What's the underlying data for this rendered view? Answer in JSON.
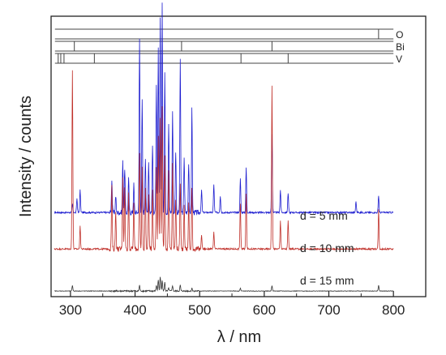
{
  "chart_data": {
    "type": "line",
    "xlabel": "λ / nm",
    "ylabel": "Intensity / counts",
    "xlim": [
      270,
      850
    ],
    "xticks": [
      300,
      400,
      500,
      600,
      700,
      800
    ],
    "grid": false,
    "series": [
      {
        "name": "d = 5 mm",
        "color": "#1f1fd0",
        "offset": 0.3,
        "peaks": [
          [
            303,
            0.03
          ],
          [
            310,
            0.05
          ],
          [
            315,
            0.08
          ],
          [
            364,
            0.12
          ],
          [
            370,
            0.06
          ],
          [
            381,
            0.18
          ],
          [
            384,
            0.16
          ],
          [
            390,
            0.12
          ],
          [
            398,
            0.1
          ],
          [
            407,
            0.62
          ],
          [
            411,
            0.4
          ],
          [
            416,
            0.2
          ],
          [
            421,
            0.18
          ],
          [
            427,
            0.24
          ],
          [
            433,
            0.45
          ],
          [
            436,
            0.58
          ],
          [
            439,
            0.7
          ],
          [
            442,
            0.74
          ],
          [
            446,
            0.5
          ],
          [
            452,
            0.32
          ],
          [
            458,
            0.36
          ],
          [
            463,
            0.22
          ],
          [
            470,
            0.55
          ],
          [
            476,
            0.2
          ],
          [
            483,
            0.18
          ],
          [
            488,
            0.38
          ],
          [
            503,
            0.08
          ],
          [
            522,
            0.1
          ],
          [
            532,
            0.06
          ],
          [
            563,
            0.12
          ],
          [
            572,
            0.16
          ],
          [
            612,
            0.28
          ],
          [
            625,
            0.08
          ],
          [
            637,
            0.07
          ],
          [
            742,
            0.04
          ],
          [
            777,
            0.06
          ]
        ]
      },
      {
        "name": "d = 10 mm",
        "color": "#c0302a",
        "offset": 0.17,
        "peaks": [
          [
            303,
            0.64
          ],
          [
            315,
            0.08
          ],
          [
            364,
            0.22
          ],
          [
            370,
            0.14
          ],
          [
            381,
            0.26
          ],
          [
            384,
            0.22
          ],
          [
            390,
            0.2
          ],
          [
            398,
            0.16
          ],
          [
            407,
            0.34
          ],
          [
            411,
            0.3
          ],
          [
            416,
            0.22
          ],
          [
            421,
            0.2
          ],
          [
            427,
            0.22
          ],
          [
            433,
            0.3
          ],
          [
            436,
            0.4
          ],
          [
            439,
            0.46
          ],
          [
            442,
            0.5
          ],
          [
            446,
            0.34
          ],
          [
            452,
            0.28
          ],
          [
            458,
            0.3
          ],
          [
            463,
            0.18
          ],
          [
            470,
            0.24
          ],
          [
            476,
            0.16
          ],
          [
            483,
            0.16
          ],
          [
            488,
            0.22
          ],
          [
            503,
            0.05
          ],
          [
            522,
            0.06
          ],
          [
            563,
            0.16
          ],
          [
            572,
            0.2
          ],
          [
            612,
            0.58
          ],
          [
            625,
            0.1
          ],
          [
            637,
            0.1
          ],
          [
            777,
            0.14
          ]
        ]
      },
      {
        "name": "d = 15 mm",
        "color": "#333333",
        "offset": 0.02,
        "peaks": [
          [
            303,
            0.02
          ],
          [
            407,
            0.02
          ],
          [
            433,
            0.02
          ],
          [
            436,
            0.04
          ],
          [
            439,
            0.05
          ],
          [
            442,
            0.04
          ],
          [
            446,
            0.03
          ],
          [
            452,
            0.01
          ],
          [
            458,
            0.02
          ],
          [
            470,
            0.02
          ],
          [
            488,
            0.01
          ],
          [
            563,
            0.01
          ],
          [
            612,
            0.02
          ],
          [
            777,
            0.02
          ]
        ]
      }
    ],
    "annotations": [
      "d = 5 mm",
      "d = 10 mm",
      "d = 15 mm"
    ],
    "reference_lines": [
      {
        "element": "O",
        "color": "#444444",
        "lines": [
          777
        ]
      },
      {
        "element": "Bi",
        "color": "#444444",
        "lines": [
          306,
          472,
          612
        ]
      },
      {
        "element": "V",
        "color": "#444444",
        "lines": [
          281,
          285,
          290,
          337,
          564,
          637
        ]
      }
    ]
  }
}
